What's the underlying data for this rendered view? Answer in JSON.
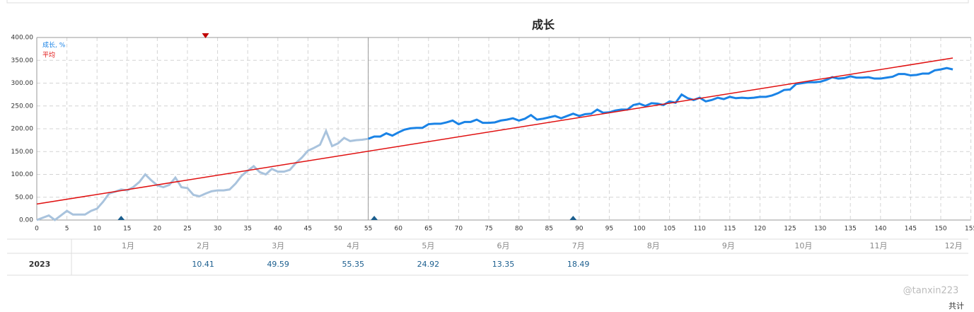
{
  "chart_data": {
    "type": "line",
    "title": "成长",
    "x": [
      0,
      1,
      2,
      3,
      4,
      5,
      6,
      7,
      8,
      9,
      10,
      11,
      12,
      13,
      14,
      15,
      16,
      17,
      18,
      19,
      20,
      21,
      22,
      23,
      24,
      25,
      26,
      27,
      28,
      29,
      30,
      31,
      32,
      33,
      34,
      35,
      36,
      37,
      38,
      39,
      40,
      41,
      42,
      43,
      44,
      45,
      46,
      47,
      48,
      49,
      50,
      51,
      52,
      53,
      54,
      55,
      56,
      57,
      58,
      59,
      60,
      61,
      62,
      63,
      64,
      65,
      66,
      67,
      68,
      69,
      70,
      71,
      72,
      73,
      74,
      75,
      76,
      77,
      78,
      79,
      80,
      81,
      82,
      83,
      84,
      85,
      86,
      87,
      88,
      89,
      90,
      91,
      92,
      93,
      94,
      95,
      96,
      97,
      98,
      99,
      100,
      101,
      102,
      103,
      104,
      105,
      106,
      107,
      108,
      109,
      110,
      111,
      112,
      113,
      114,
      115,
      116,
      117,
      118,
      119,
      120,
      121,
      122,
      123,
      124,
      125,
      126,
      127,
      128,
      129,
      130,
      131,
      132,
      133,
      134,
      135,
      136,
      137,
      138,
      139,
      140,
      141,
      142,
      143,
      144,
      145,
      146,
      147,
      148,
      149,
      150,
      151,
      152
    ],
    "series": [
      {
        "name": "成长, %",
        "color": "#1a83e6",
        "color_before_split": "#a9c3dd",
        "values": [
          0,
          5,
          10,
          0,
          10,
          20,
          12,
          12,
          12,
          20,
          25,
          40,
          58,
          62,
          67,
          65,
          72,
          83,
          100,
          87,
          76,
          72,
          77,
          93,
          72,
          70,
          55,
          52,
          58,
          63,
          65,
          65,
          67,
          80,
          97,
          108,
          118,
          105,
          100,
          112,
          106,
          106,
          110,
          125,
          137,
          152,
          158,
          165,
          195,
          162,
          168,
          180,
          173,
          175,
          176,
          178,
          183,
          183,
          190,
          185,
          192,
          198,
          201,
          202,
          202,
          210,
          211,
          211,
          214,
          218,
          210,
          215,
          215,
          220,
          213,
          213,
          214,
          218,
          220,
          223,
          218,
          222,
          230,
          220,
          222,
          225,
          228,
          223,
          228,
          233,
          228,
          232,
          233,
          242,
          235,
          236,
          240,
          242,
          242,
          252,
          255,
          250,
          256,
          255,
          252,
          260,
          257,
          275,
          267,
          263,
          268,
          260,
          263,
          268,
          265,
          270,
          267,
          268,
          267,
          268,
          270,
          270,
          273,
          278,
          285,
          286,
          298,
          300,
          302,
          302,
          303,
          307,
          313,
          310,
          311,
          315,
          312,
          312,
          313,
          310,
          310,
          312,
          314,
          320,
          320,
          317,
          318,
          321,
          321,
          328,
          330,
          333,
          330
        ]
      },
      {
        "name": "平均",
        "color": "#e01010",
        "x": [
          0,
          152
        ],
        "values": [
          35,
          355
        ]
      }
    ],
    "split_x": 55,
    "events": {
      "bottom_x": [
        14,
        56,
        89
      ],
      "bottom_color": "#1b5e8e",
      "top_x": [
        28
      ],
      "top_color": "#c00000"
    },
    "xlim": [
      0,
      155
    ],
    "xticks": [
      0,
      5,
      10,
      15,
      20,
      25,
      30,
      35,
      40,
      45,
      50,
      55,
      60,
      65,
      70,
      75,
      80,
      85,
      90,
      95,
      100,
      105,
      110,
      115,
      120,
      125,
      130,
      135,
      140,
      145,
      150,
      155
    ],
    "ylim": [
      0,
      400
    ],
    "yticks": [
      {
        "value": 0,
        "label": "0.00"
      },
      {
        "value": 50,
        "label": "50.00"
      },
      {
        "value": 100,
        "label": "100.00"
      },
      {
        "value": 150,
        "label": "150.00"
      },
      {
        "value": 200,
        "label": "200.00"
      },
      {
        "value": 250,
        "label": "250.00"
      },
      {
        "value": 300,
        "label": "300.00"
      },
      {
        "value": 350,
        "label": "350.00"
      },
      {
        "value": 400,
        "label": "400.00"
      }
    ],
    "grid": true
  },
  "table": {
    "months": [
      "1月",
      "2月",
      "3月",
      "4月",
      "5月",
      "6月",
      "7月",
      "8月",
      "9月",
      "10月",
      "11月",
      "12月"
    ],
    "rows": [
      {
        "year": "2023",
        "values": [
          null,
          10.41,
          49.59,
          55.35,
          24.92,
          13.35,
          18.49,
          null,
          null,
          null,
          null,
          null
        ]
      }
    ],
    "total_label": "共计"
  },
  "watermark": "@tanxin223"
}
